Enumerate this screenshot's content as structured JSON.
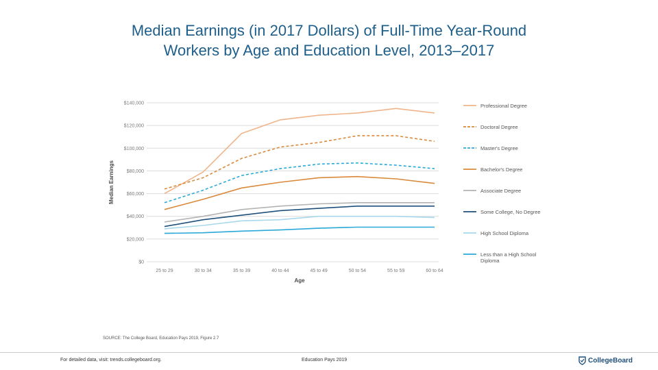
{
  "title": {
    "line1": "Median Earnings (in 2017 Dollars) of Full-Time Year-Round",
    "line2": "Workers by Age and Education Level, 2013–2017"
  },
  "source": "SOURCE: The College Board, Education Pays 2019, Figure 2.7",
  "footer": {
    "left": "For detailed data, visit: trends.collegeboard.org.",
    "middle": "Education Pays 2019",
    "brand": "CollegeBoard"
  },
  "chart_data": {
    "type": "line",
    "xlabel": "Age",
    "ylabel": "Median Earnings",
    "ylim": [
      0,
      140000
    ],
    "yticks": [
      0,
      20000,
      40000,
      60000,
      80000,
      100000,
      120000,
      140000
    ],
    "ytick_labels": [
      "$0",
      "$20,000",
      "$40,000",
      "$60,000",
      "$80,000",
      "$100,000",
      "$120,000",
      "$140,000"
    ],
    "categories": [
      "25 to 29",
      "30 to 34",
      "35 to 39",
      "40 to 44",
      "45 to 49",
      "50 to 54",
      "55 to 59",
      "60 to 64"
    ],
    "grid": "horizontal",
    "legend_position": "right",
    "series": [
      {
        "name": "Professional Degree",
        "color": "#f0b48a",
        "dash": "solid",
        "values": [
          60000,
          79000,
          113000,
          125000,
          129000,
          131000,
          135000,
          131000
        ]
      },
      {
        "name": "Doctoral Degree",
        "color": "#d9893a",
        "dash": "dashed",
        "values": [
          64000,
          74000,
          91000,
          101000,
          105000,
          111000,
          111000,
          106000
        ]
      },
      {
        "name": "Master's Degree",
        "color": "#2aa8d8",
        "dash": "dashed",
        "values": [
          52000,
          63000,
          76000,
          82000,
          86000,
          87000,
          85000,
          82000
        ]
      },
      {
        "name": "Bachelor's Degree",
        "color": "#d9893a",
        "dash": "solid",
        "values": [
          46000,
          55000,
          65000,
          70000,
          74000,
          75000,
          73000,
          69000
        ]
      },
      {
        "name": "Associate Degree",
        "color": "#b3b3b3",
        "dash": "solid",
        "values": [
          35000,
          40000,
          46000,
          49000,
          51000,
          52000,
          52000,
          52000
        ]
      },
      {
        "name": "Some College, No Degree",
        "color": "#1d4f7c",
        "dash": "solid",
        "values": [
          31000,
          37000,
          41000,
          45000,
          47000,
          49000,
          49000,
          49000
        ]
      },
      {
        "name": "High School Diploma",
        "color": "#a7d8ec",
        "dash": "solid",
        "values": [
          29000,
          32000,
          36000,
          37000,
          40000,
          40000,
          40000,
          39000
        ]
      },
      {
        "name": "Less than a High School Diploma",
        "color": "#2aa8d8",
        "dash": "solid",
        "values": [
          25000,
          25500,
          27000,
          28000,
          29500,
          30500,
          30500,
          30500
        ]
      }
    ]
  }
}
